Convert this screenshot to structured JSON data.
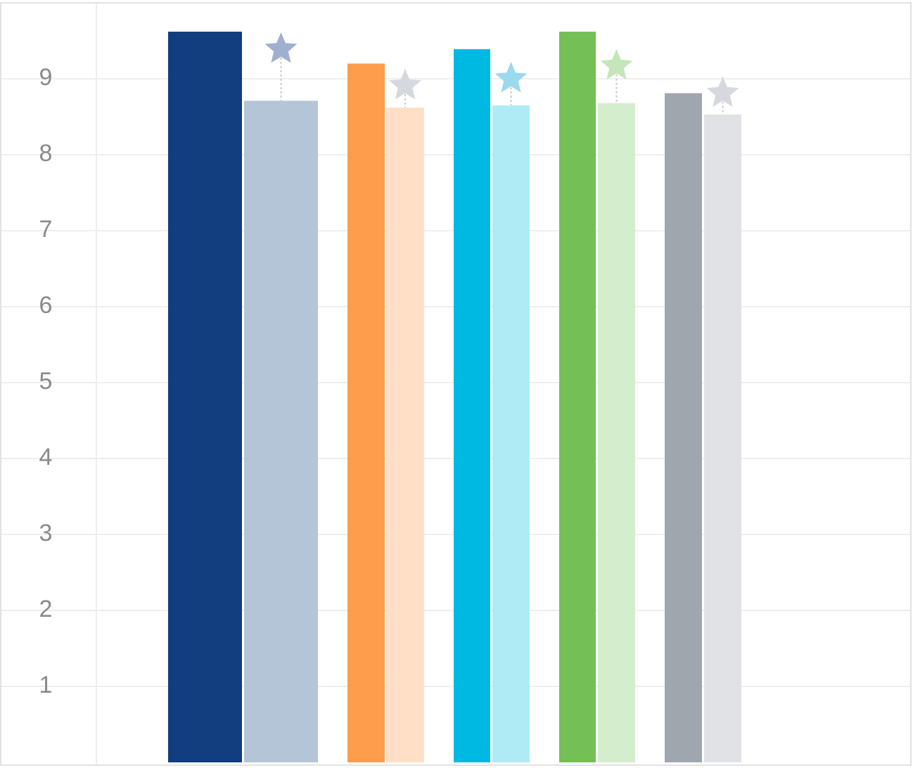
{
  "chart_data": {
    "type": "bar",
    "categories": [
      null,
      null,
      null,
      null,
      null
    ],
    "series": [
      {
        "colors": [
          "#123d7e",
          "#fe9d4c",
          "#00b9e2",
          "#74c056",
          "#a0a6ae"
        ],
        "values": [
          9.62,
          9.2,
          9.39,
          9.62,
          8.81
        ]
      },
      {
        "colors": [
          "#b4c5d8",
          "#ffe0c6",
          "#afebf5",
          "#d3edcd",
          "#e1e2e5"
        ],
        "values": [
          8.71,
          8.62,
          8.65,
          8.68,
          8.53
        ]
      }
    ],
    "targets": {
      "colors": [
        "#9fb0cc",
        "#d5d8de",
        "#9ad9ee",
        "#c5e6b8",
        "#d5d8de"
      ],
      "values": [
        9.39,
        8.91,
        9.0,
        9.17,
        8.81
      ]
    },
    "ylim": [
      0,
      10
    ],
    "yticks": [
      1,
      2,
      3,
      4,
      5,
      6,
      7,
      8,
      9
    ],
    "grid": true
  }
}
